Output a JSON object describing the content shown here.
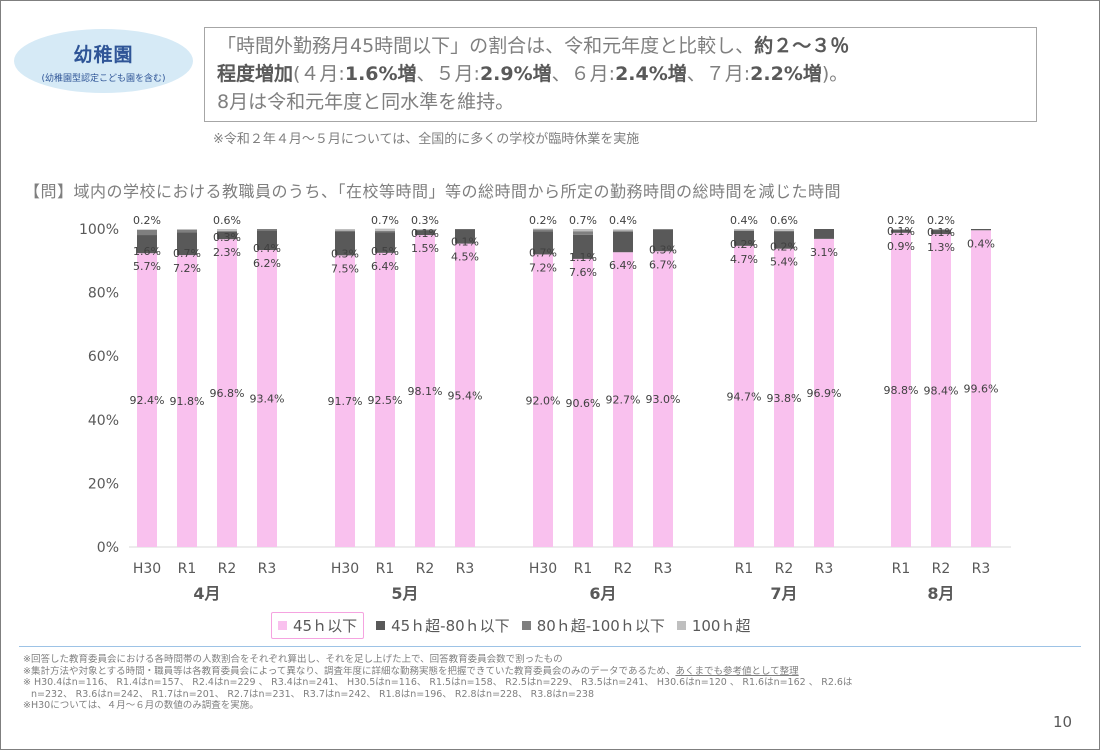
{
  "badge": {
    "title": "幼稚園",
    "subtitle": "(幼稚園型認定こども園を含む)"
  },
  "summary": {
    "p1": "「時間外勤務月45時間以下」の割合は、令和元年度と比較し、",
    "p2": "約２～３％",
    "p3": "程度増加",
    "p4": "(４月:",
    "p5": "1.6%増",
    "p6": "、５月:",
    "p7": "2.9%増",
    "p8": "、６月:",
    "p9": "2.4%増",
    "p10": "、７月:",
    "p11": "2.2%増",
    "p12": ")。",
    "line3": "8月は令和元年度と同水準を維持。"
  },
  "note_top": "※令和２年４月～５月については、全国的に多くの学校が臨時休業を実施",
  "question": "【問】域内の学校における教職員のうち、「在校等時間」等の総時間から所定の勤務時間の総時間を減じた時間",
  "colors": {
    "le45": "#f9c1ee",
    "gt45": "#595959",
    "gt80": "#7f7f7f",
    "gt100": "#bfbfbf",
    "axis": "#595959",
    "grid": "#d9d9d9"
  },
  "chart_data": {
    "type": "bar",
    "stacked": true,
    "ylim": [
      0,
      100
    ],
    "yticks": [
      "0%",
      "20%",
      "40%",
      "60%",
      "80%",
      "100%"
    ],
    "grid": false,
    "legend_position": "bottom",
    "series_names": [
      "45ｈ以下",
      "45ｈ超-80ｈ以下",
      "80ｈ超-100ｈ以下",
      "100ｈ超"
    ],
    "groups": [
      {
        "month": "4月",
        "bars": [
          {
            "label": "H30",
            "values": [
              92.4,
              5.7,
              1.6,
              0.2
            ],
            "labels": [
              "92.4%",
              "5.7%",
              "1.6%",
              "0.2%"
            ]
          },
          {
            "label": "R1",
            "values": [
              91.8,
              7.2,
              0.7,
              0.3
            ],
            "labels": [
              "91.8%",
              "7.2%",
              "0.7%",
              ""
            ]
          },
          {
            "label": "R2",
            "values": [
              96.8,
              2.3,
              0.3,
              0.6
            ],
            "labels": [
              "96.8%",
              "2.3%",
              "0.3%",
              "0.6%"
            ]
          },
          {
            "label": "R3",
            "values": [
              93.4,
              6.2,
              0.4,
              0.0
            ],
            "labels": [
              "93.4%",
              "6.2%",
              "0.4%",
              ""
            ]
          }
        ]
      },
      {
        "month": "5月",
        "bars": [
          {
            "label": "H30",
            "values": [
              91.7,
              7.5,
              0.3,
              0.5
            ],
            "labels": [
              "91.7%",
              "7.5%",
              "0.3%",
              ""
            ]
          },
          {
            "label": "R1",
            "values": [
              92.5,
              6.4,
              0.5,
              0.7
            ],
            "labels": [
              "92.5%",
              "6.4%",
              "0.5%",
              "0.7%"
            ]
          },
          {
            "label": "R2",
            "values": [
              98.1,
              1.5,
              0.1,
              0.3
            ],
            "labels": [
              "98.1%",
              "1.5%",
              "0.1%",
              "0.3%"
            ]
          },
          {
            "label": "R3",
            "values": [
              95.4,
              4.5,
              0.1,
              0.0
            ],
            "labels": [
              "95.4%",
              "4.5%",
              "0.1%",
              ""
            ]
          }
        ]
      },
      {
        "month": "6月",
        "bars": [
          {
            "label": "H30",
            "values": [
              92.0,
              7.2,
              0.7,
              0.2
            ],
            "labels": [
              "92.0%",
              "7.2%",
              "0.7%",
              "0.2%"
            ]
          },
          {
            "label": "R1",
            "values": [
              90.6,
              7.6,
              1.1,
              0.7
            ],
            "labels": [
              "90.6%",
              "7.6%",
              "1.1%",
              "0.7%"
            ]
          },
          {
            "label": "R2",
            "values": [
              92.7,
              6.4,
              0.4,
              0.4
            ],
            "labels": [
              "92.7%",
              "6.4%",
              "",
              "0.4%"
            ]
          },
          {
            "label": "R3",
            "values": [
              93.0,
              6.7,
              0.3,
              0.0
            ],
            "labels": [
              "93.0%",
              "6.7%",
              "0.3%",
              ""
            ]
          }
        ]
      },
      {
        "month": "7月",
        "bars": [
          {
            "label": "R1",
            "values": [
              94.7,
              4.7,
              0.2,
              0.4
            ],
            "labels": [
              "94.7%",
              "4.7%",
              "0.2%",
              "0.4%"
            ]
          },
          {
            "label": "R2",
            "values": [
              93.8,
              5.4,
              0.2,
              0.6
            ],
            "labels": [
              "93.8%",
              "5.4%",
              "0.2%",
              "0.6%"
            ]
          },
          {
            "label": "R3",
            "values": [
              96.9,
              3.1,
              0.0,
              0.0
            ],
            "labels": [
              "96.9%",
              "3.1%",
              "",
              ""
            ]
          }
        ]
      },
      {
        "month": "8月",
        "bars": [
          {
            "label": "R1",
            "values": [
              98.8,
              0.9,
              0.1,
              0.2
            ],
            "labels": [
              "98.8%",
              "0.9%",
              "0.1%",
              "0.2%"
            ]
          },
          {
            "label": "R2",
            "values": [
              98.4,
              1.3,
              0.1,
              0.2
            ],
            "labels": [
              "98.4%",
              "1.3%",
              "0.1%",
              "0.2%"
            ]
          },
          {
            "label": "R3",
            "values": [
              99.6,
              0.4,
              0.0,
              0.0
            ],
            "labels": [
              "99.6%",
              "0.4%",
              "",
              ""
            ]
          }
        ]
      }
    ]
  },
  "legend": {
    "le45": "45ｈ以下",
    "gt45": "45ｈ超-80ｈ以下",
    "gt80": "80ｈ超-100ｈ以下",
    "gt100": "100ｈ超"
  },
  "footnotes": {
    "f1": "※回答した教育委員会における各時間帯の人数割合をそれぞれ算出し、それを足し上げた上で、回答教育委員会数で割ったもの",
    "f2a": "※集計方法や対象とする時間・職員等は各教育委員会によって異なり、調査年度に詳細な勤務実態を把握できていた教育委員会のみのデータであるため、",
    "f2b": "あくまでも参考値として整理",
    "f3": "※ H30.4はn=116、 R1.4はn=157、 R2.4はn=229 、 R3.4はn=241、 H30.5はn=116、 R1.5はn=158、 R2.5はn=229、 R3.5はn=241、 H30.6はn=120 、 R1.6はn=162 、 R2.6は",
    "f4": "n=232、 R3.6はn=242、 R1.7はn=201、 R2.7はn=231、 R3.7はn=242、 R1.8はn=196、 R2.8はn=228、 R3.8はn=238",
    "f5": "※H30については、４月～６月の数値のみ調査を実施。"
  },
  "page_number": "10"
}
